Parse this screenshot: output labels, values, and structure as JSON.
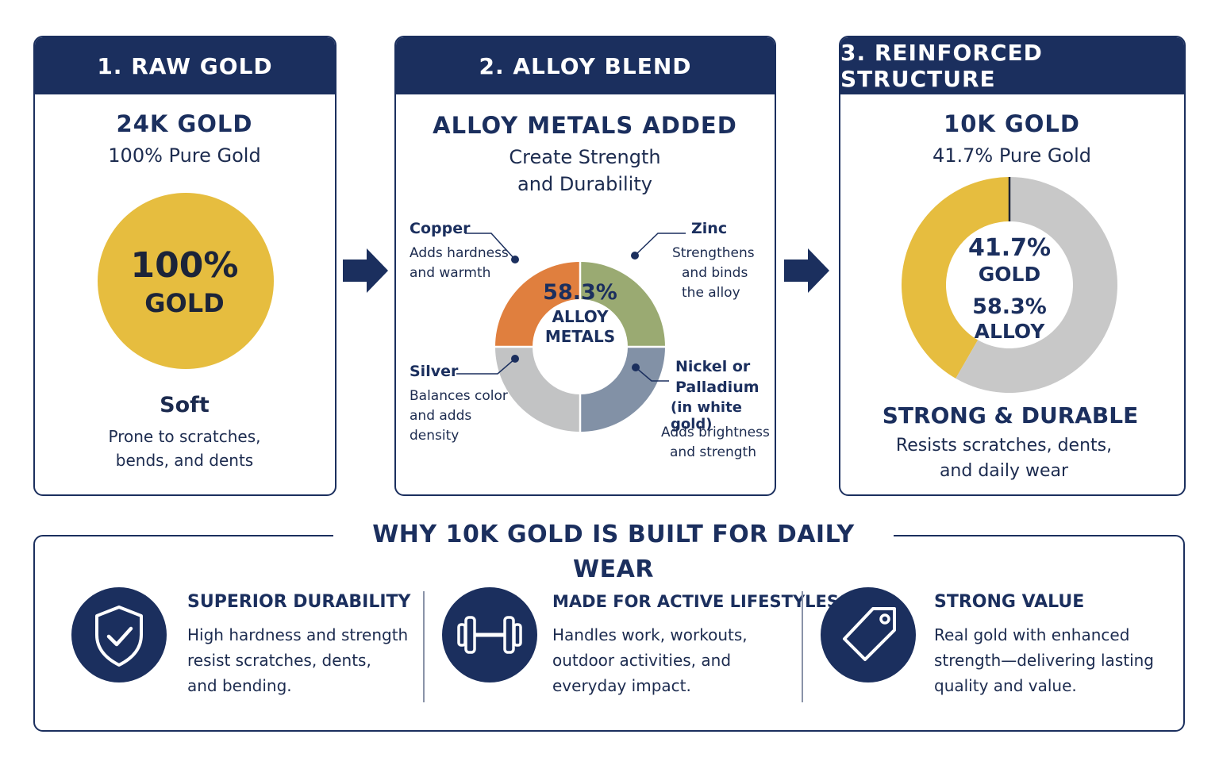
{
  "colors": {
    "navy": "#1b2f5e",
    "gold": "#e6bd3f",
    "copper": "#e07f3e",
    "zinc": "#9aaa72",
    "silver": "#c2c3c4",
    "nickel": "#8291a6",
    "alloy_gray": "#c8c8c8"
  },
  "step1": {
    "header": "1. RAW GOLD",
    "title": "24K GOLD",
    "subtitle": "100% Pure Gold",
    "circle_line1": "100%",
    "circle_line2": "GOLD",
    "gold_percent": 100,
    "trait": "Soft",
    "desc_line1": "Prone to scratches,",
    "desc_line2": "bends, and dents"
  },
  "step2": {
    "header": "2. ALLOY BLEND",
    "title": "ALLOY METALS ADDED",
    "subtitle_line1": "Create Strength",
    "subtitle_line2": "and Durability",
    "center_line1": "58.3%",
    "center_line2": "ALLOY",
    "center_line3": "METALS",
    "copper": {
      "name": "Copper",
      "line1": "Adds hardness",
      "line2": "and warmth"
    },
    "zinc": {
      "name": "Zinc",
      "line1": "Strengthens",
      "line2": "and binds",
      "line3": "the alloy"
    },
    "silver": {
      "name": "Silver",
      "line1": "Balances color",
      "line2": "and adds",
      "line3": "density"
    },
    "nickel": {
      "name_line1": "Nickel or",
      "name_line2": "Palladium",
      "name_line3": "(in white gold)",
      "line1": "Adds brightness",
      "line2": "and strength"
    }
  },
  "step3": {
    "header": "3. REINFORCED STRUCTURE",
    "title": "10K GOLD",
    "subtitle": "41.7% Pure Gold",
    "center_line1": "41.7%",
    "center_line2": "GOLD",
    "center_line3": "58.3%",
    "center_line4": "ALLOY",
    "gold_percent": 41.7,
    "alloy_percent": 58.3,
    "trait": "STRONG & DURABLE",
    "desc_line1": "Resists scratches, dents,",
    "desc_line2": "and daily wear"
  },
  "bottom": {
    "title": "WHY 10K GOLD IS BUILT FOR DAILY WEAR",
    "features": [
      {
        "icon": "shield-check-icon",
        "title": "SUPERIOR DURABILITY",
        "line1": "High hardness and strength",
        "line2": "resist scratches, dents,",
        "line3": "and bending."
      },
      {
        "icon": "dumbbell-icon",
        "title": "MADE FOR ACTIVE LIFESTYLES",
        "line1": "Handles work, workouts,",
        "line2": "outdoor activities, and",
        "line3": "everyday impact."
      },
      {
        "icon": "price-tag-icon",
        "title": "STRONG VALUE",
        "line1": "Real gold with enhanced",
        "line2": "strength—delivering lasting",
        "line3": "quality and value."
      }
    ]
  }
}
